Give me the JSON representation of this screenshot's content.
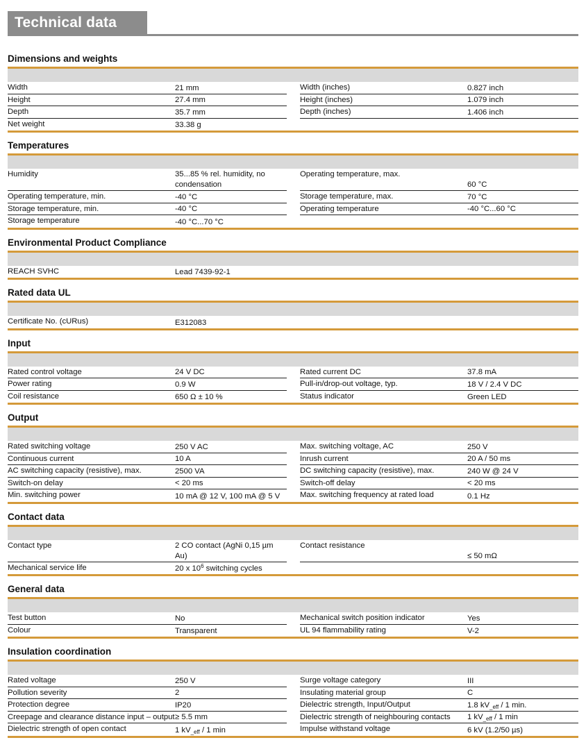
{
  "header": {
    "title": "Technical data"
  },
  "colors": {
    "accent": "#d49a3a",
    "band": "#d9d9d9",
    "header_gray": "#8c8c8c"
  },
  "sections": [
    {
      "title": "Dimensions and weights",
      "rows": [
        [
          [
            "Width",
            "21 mm"
          ],
          [
            "Width (inches)",
            "0.827 inch"
          ]
        ],
        [
          [
            "Height",
            "27.4 mm"
          ],
          [
            "Height (inches)",
            "1.079 inch"
          ]
        ],
        [
          [
            "Depth",
            "35.7 mm"
          ],
          [
            "Depth (inches)",
            "1.406 inch"
          ]
        ],
        [
          [
            "Net weight",
            "33.38 g"
          ],
          null
        ]
      ]
    },
    {
      "title": "Temperatures",
      "rows": [
        [
          [
            "Humidity",
            "35...85 % rel. humidity, no condensation"
          ],
          [
            "Operating temperature, max.",
            "60 °C"
          ]
        ],
        [
          [
            "Operating temperature, min.",
            "-40 °C"
          ],
          [
            "Storage temperature, max.",
            "70 °C"
          ]
        ],
        [
          [
            "Storage temperature, min.",
            "-40 °C"
          ],
          [
            "Operating temperature",
            "-40 °C...60 °C"
          ]
        ],
        [
          [
            "Storage temperature",
            "-40 °C...70 °C"
          ],
          null
        ]
      ]
    },
    {
      "title": "Environmental Product Compliance",
      "rows": [
        [
          [
            "REACH SVHC",
            "Lead 7439-92-1"
          ],
          null
        ]
      ]
    },
    {
      "title": "Rated data UL",
      "rows": [
        [
          [
            "Certificate No. (cURus)",
            "E312083"
          ],
          null
        ]
      ]
    },
    {
      "title": "Input",
      "rows": [
        [
          [
            "Rated control voltage",
            "24 V DC"
          ],
          [
            "Rated current DC",
            "37.8 mA"
          ]
        ],
        [
          [
            "Power rating",
            "0.9 W"
          ],
          [
            "Pull-in/drop-out voltage, typ.",
            "18 V / 2.4 V DC"
          ]
        ],
        [
          [
            "Coil resistance",
            "650 Ω ± 10 %"
          ],
          [
            "Status indicator",
            "Green LED"
          ]
        ]
      ]
    },
    {
      "title": "Output",
      "rows": [
        [
          [
            "Rated switching voltage",
            "250 V AC"
          ],
          [
            "Max. switching voltage, AC",
            "250 V"
          ]
        ],
        [
          [
            "Continuous current",
            "10 A"
          ],
          [
            "Inrush current",
            "20 A / 50 ms"
          ]
        ],
        [
          [
            "AC switching capacity (resistive), max.",
            "2500 VA"
          ],
          [
            "DC switching capacity (resistive), max.",
            "240 W @ 24 V"
          ]
        ],
        [
          [
            "Switch-on delay",
            "< 20 ms"
          ],
          [
            "Switch-off delay",
            "< 20 ms"
          ]
        ],
        [
          [
            "Min. switching power",
            "10 mA @ 12 V, 100 mA @ 5 V"
          ],
          [
            "Max. switching frequency at rated load",
            "0.1 Hz"
          ]
        ]
      ]
    },
    {
      "title": "Contact data",
      "rows": [
        [
          [
            "Contact type",
            "2 CO contact (AgNi 0,15 µm Au)"
          ],
          [
            "Contact resistance",
            "≤ 50 mΩ"
          ]
        ],
        [
          [
            "Mechanical service life",
            [
              "20 x 10",
              "^6",
              " switching cycles"
            ]
          ],
          null
        ]
      ]
    },
    {
      "title": "General data",
      "rows": [
        [
          [
            "Test button",
            "No"
          ],
          [
            "Mechanical switch position indicator",
            "Yes"
          ]
        ],
        [
          [
            "Colour",
            "Transparent"
          ],
          [
            "UL 94 flammability rating",
            "V-2"
          ]
        ]
      ]
    },
    {
      "title": "Insulation coordination",
      "rows": [
        [
          [
            "Rated voltage",
            "250 V"
          ],
          [
            "Surge voltage category",
            "III"
          ]
        ],
        [
          [
            "Pollution severity",
            "2"
          ],
          [
            "Insulating material group",
            "C"
          ]
        ],
        [
          [
            "Protection degree",
            "IP20"
          ],
          [
            "Dielectric strength, Input/Output",
            [
              "1.8 kV",
              "_eff",
              " / 1 min."
            ]
          ]
        ],
        [
          [
            "Creepage and clearance distance input – output",
            "≥ 5.5 mm"
          ],
          [
            "Dielectric strength of neighbouring contacts",
            [
              "1 kV",
              "_eff",
              " / 1 min"
            ]
          ]
        ],
        [
          [
            "Dielectric strength of open contact",
            [
              "1 kV",
              "_eff",
              " / 1 min"
            ]
          ],
          [
            "Impulse withstand voltage",
            "6 kV (1.2/50 µs)"
          ]
        ]
      ]
    }
  ]
}
